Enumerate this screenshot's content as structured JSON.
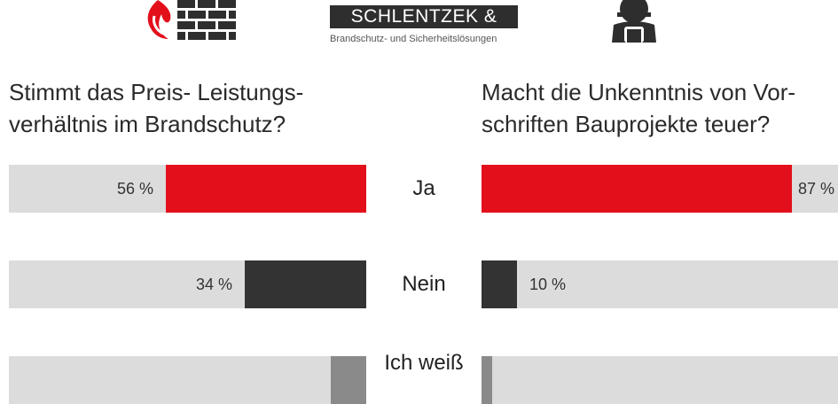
{
  "header": {
    "brand_name": "SCHLENTZEK & KÜHN",
    "brand_tagline": "Brandschutz- und Sicherheitslösungen",
    "left_logo_icon": "fire-wall-logo-icon",
    "right_logo_icon": "worker-helmet-icon"
  },
  "colors": {
    "yes": "#e3101c",
    "no": "#333333",
    "unknown": "#8a8a8a",
    "track": "#dcdcdc"
  },
  "chart_data": [
    {
      "type": "bar",
      "title": "Stimmt das Preis- Leistungs-\nverhältnis im Brandschutz?",
      "categories": [
        "Ja",
        "Nein",
        "Ich weiß"
      ],
      "values": [
        56,
        34,
        10
      ],
      "value_labels": [
        "56 %",
        "34 %",
        ""
      ],
      "unit": "%",
      "orientation": "horizontal",
      "direction": "right-to-left",
      "xlim": [
        0,
        100
      ]
    },
    {
      "type": "bar",
      "title": "Macht die Unkenntnis von Vor-\nschriften Bauprojekte teuer?",
      "categories": [
        "Ja",
        "Nein",
        "Ich weiß"
      ],
      "values": [
        87,
        10,
        3
      ],
      "value_labels": [
        "87 %",
        "10 %",
        ""
      ],
      "unit": "%",
      "orientation": "horizontal",
      "direction": "left-to-right",
      "xlim": [
        0,
        100
      ]
    }
  ]
}
